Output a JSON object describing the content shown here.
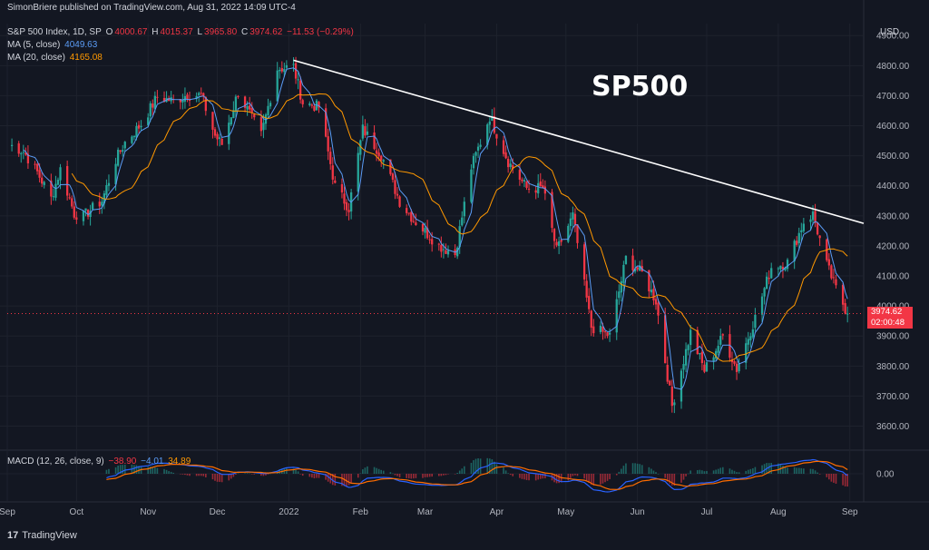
{
  "publisher_line": "SimonBriere published on TradingView.com, Aug 31, 2022 14:09 UTC-4",
  "legend": {
    "symbol": "S&P 500 Index, 1D, SP",
    "ohlc": {
      "open_label": "O",
      "open": "4000.67",
      "high_label": "H",
      "high": "4015.37",
      "low_label": "L",
      "low": "3965.80",
      "close_label": "C",
      "close": "3974.62",
      "change": "−11.53 (−0.29%)"
    },
    "ma5": {
      "label": "MA (5, close)",
      "value": "4049.63",
      "color": "#5b9cf6"
    },
    "ma20": {
      "label": "MA (20, close)",
      "value": "4165.08",
      "color": "#ff9800"
    }
  },
  "macd_legend": {
    "label": "MACD (12, 26, close, 9)",
    "hist": "−38.90",
    "macd": "−4.01",
    "signal": "34.89"
  },
  "annotation": "SP500",
  "currency": "USD",
  "price_tag": {
    "price": "3974.62",
    "countdown": "02:00:48"
  },
  "footer": {
    "logo": "17",
    "brand": "TradingView"
  },
  "colors": {
    "up": "#26a69a",
    "down": "#f23645",
    "background": "#131722",
    "grid": "#1e222d",
    "trendline": "#ffffff"
  },
  "chart_data": {
    "type": "candlestick",
    "price_axis": {
      "ticks": [
        3600,
        3700,
        3800,
        3900,
        4000,
        4100,
        4200,
        4300,
        4400,
        4500,
        4600,
        4700,
        4800,
        4900
      ],
      "labels": [
        "3600.00",
        "3700.00",
        "3800.00",
        "3900.00",
        "4000.00",
        "4100.00",
        "4200.00",
        "4300.00",
        "4400.00",
        "4500.00",
        "4600.00",
        "4700.00",
        "4800.00",
        "4900.00"
      ],
      "range": [
        3520,
        4940
      ]
    },
    "macd_axis": {
      "ticks": [
        0
      ],
      "labels": [
        "0.00"
      ]
    },
    "time_axis": {
      "labels": [
        "Sep",
        "Oct",
        "Nov",
        "Dec",
        "2022",
        "Feb",
        "Mar",
        "Apr",
        "May",
        "Jun",
        "Jul",
        "Aug",
        "Sep"
      ],
      "dates": [
        "2021-09-01",
        "2021-10-01",
        "2021-11-01",
        "2021-12-01",
        "2022-01-01",
        "2022-02-01",
        "2022-03-01",
        "2022-04-01",
        "2022-05-01",
        "2022-06-01",
        "2022-07-01",
        "2022-08-01",
        "2022-09-01"
      ],
      "range": [
        "2021-09-01",
        "2022-09-07"
      ]
    },
    "close_path": [
      [
        "2021-09-02",
        4537
      ],
      [
        "2021-09-08",
        4515
      ],
      [
        "2021-09-14",
        4445
      ],
      [
        "2021-09-20",
        4358
      ],
      [
        "2021-09-24",
        4455
      ],
      [
        "2021-09-30",
        4307
      ],
      [
        "2021-10-04",
        4300
      ],
      [
        "2021-10-12",
        4350
      ],
      [
        "2021-10-18",
        4486
      ],
      [
        "2021-10-22",
        4545
      ],
      [
        "2021-10-29",
        4605
      ],
      [
        "2021-11-05",
        4697
      ],
      [
        "2021-11-12",
        4682
      ],
      [
        "2021-11-18",
        4704
      ],
      [
        "2021-11-24",
        4701
      ],
      [
        "2021-11-30",
        4567
      ],
      [
        "2021-12-03",
        4538
      ],
      [
        "2021-12-10",
        4712
      ],
      [
        "2021-12-20",
        4568
      ],
      [
        "2021-12-27",
        4791
      ],
      [
        "2022-01-03",
        4796
      ],
      [
        "2022-01-07",
        4677
      ],
      [
        "2022-01-14",
        4662
      ],
      [
        "2022-01-21",
        4398
      ],
      [
        "2022-01-27",
        4326
      ],
      [
        "2022-02-02",
        4589
      ],
      [
        "2022-02-10",
        4504
      ],
      [
        "2022-02-18",
        4348
      ],
      [
        "2022-02-24",
        4288
      ],
      [
        "2022-03-07",
        4201
      ],
      [
        "2022-03-14",
        4173
      ],
      [
        "2022-03-21",
        4461
      ],
      [
        "2022-03-29",
        4631
      ],
      [
        "2022-04-06",
        4481
      ],
      [
        "2022-04-14",
        4392
      ],
      [
        "2022-04-21",
        4393
      ],
      [
        "2022-04-27",
        4183
      ],
      [
        "2022-05-04",
        4300
      ],
      [
        "2022-05-12",
        3930
      ],
      [
        "2022-05-20",
        3901
      ],
      [
        "2022-05-27",
        4158
      ],
      [
        "2022-06-03",
        4108
      ],
      [
        "2022-06-09",
        4017
      ],
      [
        "2022-06-16",
        3667
      ],
      [
        "2022-06-24",
        3911
      ],
      [
        "2022-06-30",
        3785
      ],
      [
        "2022-07-08",
        3899
      ],
      [
        "2022-07-14",
        3790
      ],
      [
        "2022-07-22",
        3961
      ],
      [
        "2022-07-29",
        4130
      ],
      [
        "2022-08-05",
        4145
      ],
      [
        "2022-08-12",
        4280
      ],
      [
        "2022-08-16",
        4305
      ],
      [
        "2022-08-22",
        4137
      ],
      [
        "2022-08-26",
        4057
      ],
      [
        "2022-08-31",
        3975
      ]
    ],
    "ma20_path": [
      [
        "2021-09-02",
        4460
      ],
      [
        "2021-09-20",
        4480
      ],
      [
        "2021-10-04",
        4420
      ],
      [
        "2021-10-18",
        4400
      ],
      [
        "2021-11-01",
        4530
      ],
      [
        "2021-11-22",
        4660
      ],
      [
        "2021-12-10",
        4650
      ],
      [
        "2022-01-03",
        4720
      ],
      [
        "2022-01-21",
        4640
      ],
      [
        "2022-02-07",
        4480
      ],
      [
        "2022-02-25",
        4400
      ],
      [
        "2022-03-14",
        4280
      ],
      [
        "2022-04-01",
        4400
      ],
      [
        "2022-04-20",
        4460
      ],
      [
        "2022-05-06",
        4200
      ],
      [
        "2022-05-24",
        4020
      ],
      [
        "2022-06-10",
        4050
      ],
      [
        "2022-06-28",
        3850
      ],
      [
        "2022-07-15",
        3830
      ],
      [
        "2022-08-01",
        4010
      ],
      [
        "2022-08-19",
        4200
      ],
      [
        "2022-08-31",
        4165
      ]
    ],
    "trendline": [
      [
        "2022-01-03",
        4818
      ],
      [
        "2022-09-07",
        4275
      ]
    ],
    "last_price": 3974.62
  }
}
